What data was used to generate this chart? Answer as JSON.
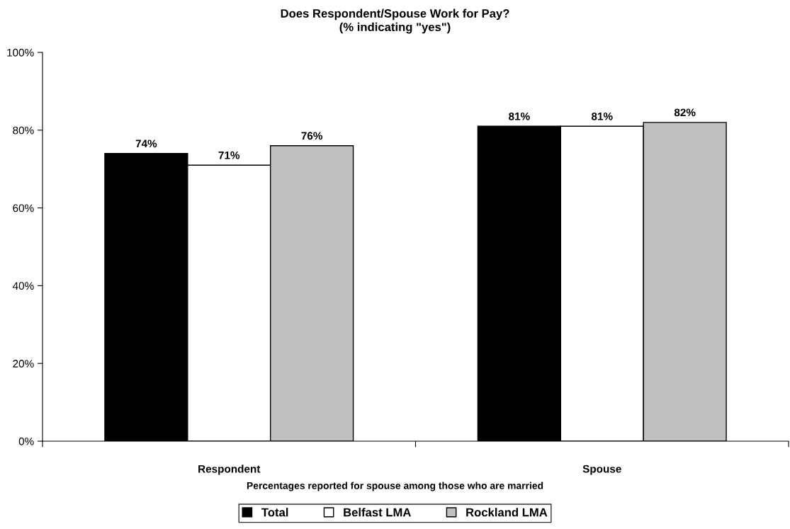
{
  "chart_data": {
    "type": "bar",
    "title": "Does Respondent/Spouse Work for Pay?\n(% indicating \"yes\")",
    "categories": [
      "Respondent",
      "Spouse"
    ],
    "series": [
      {
        "name": "Total",
        "color": "#000000",
        "values": [
          74,
          81
        ],
        "value_labels": [
          "74%",
          "81%"
        ]
      },
      {
        "name": "Belfast LMA",
        "color": "#ffffff",
        "values": [
          71,
          81
        ],
        "value_labels": [
          "71%",
          "81%"
        ]
      },
      {
        "name": "Rockland LMA",
        "color": "#c0c0c0",
        "values": [
          76,
          82
        ],
        "value_labels": [
          "76%",
          "82%"
        ]
      }
    ],
    "ylim": [
      0,
      100
    ],
    "yticks": [
      {
        "value": 0,
        "label": "0%"
      },
      {
        "value": 20,
        "label": "20%"
      },
      {
        "value": 40,
        "label": "40%"
      },
      {
        "value": 60,
        "label": "60%"
      },
      {
        "value": 80,
        "label": "80%"
      },
      {
        "value": 100,
        "label": "100%"
      }
    ],
    "annotations": [
      "Percentages reported for spouse among those who are married"
    ],
    "grid": false,
    "legend": "bottom"
  }
}
